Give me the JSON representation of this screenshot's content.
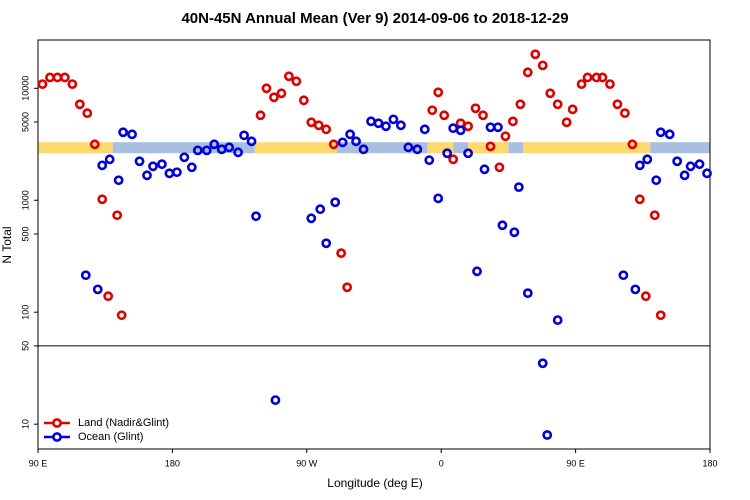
{
  "chart_data": {
    "type": "scatter",
    "title": "40N-45N Annual Mean (Ver 9)   2014-09-06 to 2018-12-29",
    "x_label": "Longitude (deg E)",
    "y_label": "N Total",
    "log_y": true,
    "xlim": [
      90,
      540
    ],
    "ylim": [
      6,
      27000
    ],
    "xticks": [
      {
        "value": 90,
        "label": "90 E"
      },
      180,
      {
        "value": 270,
        "label": "90 W"
      },
      {
        "value": 360,
        "label": "0"
      },
      {
        "value": 450,
        "label": "90 E"
      },
      {
        "value": 540,
        "label": "180"
      }
    ],
    "yticks": [
      10,
      50,
      100,
      500,
      1000,
      5000,
      10000
    ],
    "panel_split": 50,
    "legend": "lower left",
    "band": {
      "ylim": [
        2630,
        3300
      ],
      "segments": [
        {
          "x": [
            90,
            140
          ],
          "color": "#ffd970"
        },
        {
          "x": [
            140,
            235
          ],
          "color": "#a9bfe0"
        },
        {
          "x": [
            235,
            290
          ],
          "color": "#ffd970"
        },
        {
          "x": [
            290,
            351
          ],
          "color": "#a9bfe0"
        },
        {
          "x": [
            351,
            368
          ],
          "color": "#ffd970"
        },
        {
          "x": [
            368,
            378
          ],
          "color": "#a9bfe0"
        },
        {
          "x": [
            378,
            405
          ],
          "color": "#ffd970"
        },
        {
          "x": [
            405,
            415
          ],
          "color": "#a9bfe0"
        },
        {
          "x": [
            415,
            500
          ],
          "color": "#ffd970"
        },
        {
          "x": [
            500,
            540
          ],
          "color": "#a9bfe0"
        }
      ]
    },
    "series": [
      {
        "name": "Land (Nadir&Glint)",
        "color": "#e00000",
        "x": [
          93,
          98,
          103,
          108,
          113,
          118,
          123,
          128,
          133,
          137,
          143,
          146,
          239,
          243,
          248,
          253,
          258,
          263,
          268,
          273,
          278,
          283,
          288,
          293,
          297,
          354,
          358,
          362,
          368,
          373,
          378,
          383,
          388,
          393,
          399,
          403,
          408,
          413,
          418,
          423,
          428,
          433,
          438,
          444,
          448,
          454,
          458,
          464,
          468,
          473,
          478,
          483,
          488,
          493,
          497,
          503,
          507
        ],
        "values": [
          10900,
          12500,
          12500,
          12500,
          10900,
          7200,
          6000,
          3160,
          1020,
          139,
          735,
          94,
          5740,
          10000,
          8310,
          9020,
          12800,
          11550,
          7810,
          4970,
          4670,
          4300,
          3160,
          337,
          167,
          6370,
          9210,
          5740,
          2320,
          4870,
          4580,
          6630,
          5740,
          3030,
          1970,
          3730,
          5070,
          7200,
          13890,
          20140,
          16030,
          9020,
          7200,
          4970,
          6490,
          10900,
          12500,
          12500,
          12500,
          10900,
          7200,
          6000,
          3160,
          1020,
          139,
          735,
          94
        ]
      },
      {
        "name": "Ocean (Glint)",
        "color": "#0000dd",
        "x": [
          122,
          130,
          133,
          138,
          144,
          147,
          153,
          158,
          163,
          167,
          173,
          178,
          183,
          188,
          193,
          197,
          203,
          208,
          213,
          218,
          224,
          228,
          233,
          236,
          249,
          273,
          279,
          283,
          289,
          294,
          299,
          303,
          308,
          313,
          318,
          323,
          328,
          333,
          338,
          344,
          349,
          352,
          358,
          364,
          368,
          373,
          378,
          384,
          389,
          393,
          398,
          401,
          409,
          412,
          418,
          428,
          431,
          438,
          482,
          490,
          493,
          498,
          504,
          507,
          513,
          518,
          523,
          527,
          533,
          538
        ],
        "values": [
          214,
          160,
          2050,
          2320,
          1510,
          4050,
          3880,
          2230,
          1670,
          2010,
          2100,
          1740,
          1780,
          2420,
          1970,
          2790,
          2790,
          3160,
          2850,
          2970,
          2680,
          3800,
          3360,
          720,
          16.4,
          690,
          832,
          413,
          960,
          3290,
          3880,
          3360,
          2850,
          5070,
          4870,
          4580,
          5280,
          4670,
          2970,
          2850,
          4300,
          2280,
          1040,
          2630,
          4400,
          4220,
          2630,
          232,
          1890,
          4490,
          4490,
          598,
          518,
          1310,
          148,
          35,
          8.0,
          85,
          214,
          160,
          2050,
          2320,
          1510,
          4050,
          3880,
          2230,
          1670,
          2010,
          2100,
          1740
        ]
      }
    ]
  }
}
